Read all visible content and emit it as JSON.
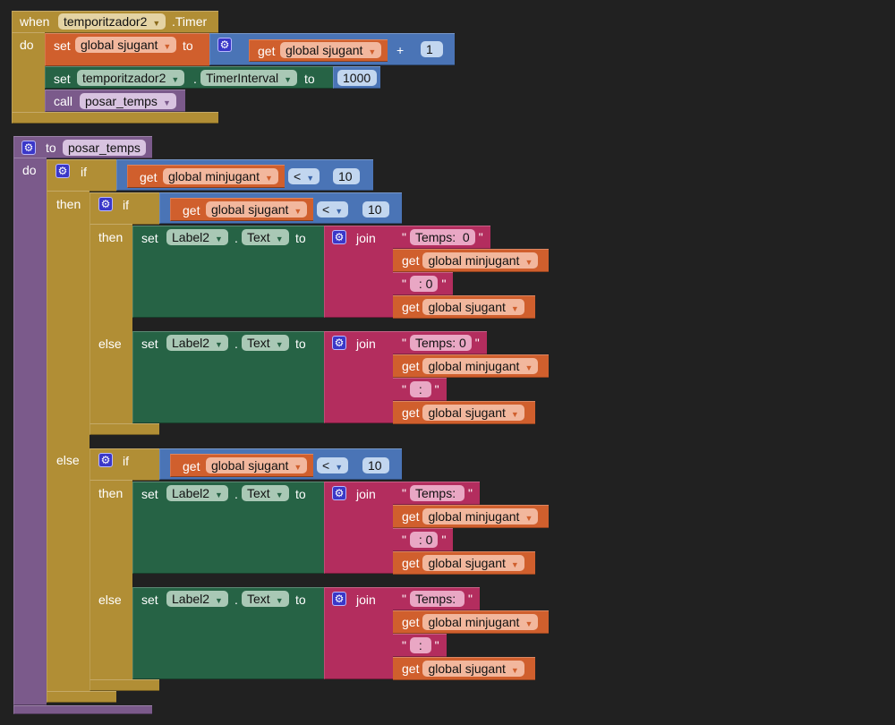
{
  "colors": {
    "background": "#212121",
    "event": "#b18e35",
    "variable": "#d05f2d",
    "math": "#4a74b6",
    "component": "#266345",
    "procedure": "#7b5a8b",
    "text": "#b32d5e"
  },
  "event_block": {
    "when": "when",
    "component": "temporitzador2",
    "event": ".Timer",
    "do": "do",
    "set_var": {
      "set": "set",
      "var": "global sjugant",
      "to": "to",
      "get": "get",
      "get_var": "global sjugant",
      "op": "+",
      "num": "1"
    },
    "set_prop": {
      "set": "set",
      "component": "temporitzador2",
      "dot": ".",
      "prop": "TimerInterval",
      "to": "to",
      "value": "1000"
    },
    "call": {
      "call": "call",
      "proc": "posar_temps"
    }
  },
  "procedure_block": {
    "to": "to",
    "name": "posar_temps",
    "do": "do",
    "outer_if": {
      "if": "if",
      "get": "get",
      "var": "global minjugant",
      "op": "<",
      "num": "10",
      "then": "then",
      "else": "else"
    },
    "branches": [
      {
        "if": "if",
        "get": "get",
        "var": "global sjugant",
        "op": "<",
        "num": "10",
        "then": "then",
        "else": "else",
        "then_set": {
          "set": "set",
          "component": "Label2",
          "dot": ".",
          "prop": "Text",
          "to": "to",
          "join": "join",
          "items": [
            {
              "type": "text",
              "value": "Temps:  0"
            },
            {
              "type": "get",
              "get": "get",
              "var": "global minjugant"
            },
            {
              "type": "text",
              "value": " : 0"
            },
            {
              "type": "get",
              "get": "get",
              "var": "global sjugant"
            }
          ]
        },
        "else_set": {
          "set": "set",
          "component": "Label2",
          "dot": ".",
          "prop": "Text",
          "to": "to",
          "join": "join",
          "items": [
            {
              "type": "text",
              "value": "Temps: 0"
            },
            {
              "type": "get",
              "get": "get",
              "var": "global minjugant"
            },
            {
              "type": "text",
              "value": " : "
            },
            {
              "type": "get",
              "get": "get",
              "var": "global sjugant"
            }
          ]
        }
      },
      {
        "if": "if",
        "get": "get",
        "var": "global sjugant",
        "op": "<",
        "num": "10",
        "then": "then",
        "else": "else",
        "then_set": {
          "set": "set",
          "component": "Label2",
          "dot": ".",
          "prop": "Text",
          "to": "to",
          "join": "join",
          "items": [
            {
              "type": "text",
              "value": "Temps: "
            },
            {
              "type": "get",
              "get": "get",
              "var": "global minjugant"
            },
            {
              "type": "text",
              "value": " : 0"
            },
            {
              "type": "get",
              "get": "get",
              "var": "global sjugant"
            }
          ]
        },
        "else_set": {
          "set": "set",
          "component": "Label2",
          "dot": ".",
          "prop": "Text",
          "to": "to",
          "join": "join",
          "items": [
            {
              "type": "text",
              "value": "Temps: "
            },
            {
              "type": "get",
              "get": "get",
              "var": "global minjugant"
            },
            {
              "type": "text",
              "value": " : "
            },
            {
              "type": "get",
              "get": "get",
              "var": "global sjugant"
            }
          ]
        }
      }
    ]
  }
}
